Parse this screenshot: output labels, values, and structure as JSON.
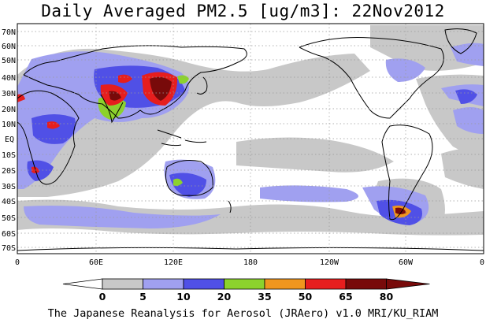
{
  "title": "Daily Averaged PM2.5 [ug/m3]: 22Nov2012",
  "credit": "The Japanese Reanalysis for Aerosol (JRAero) v1.0 MRI/KU_RIAM",
  "lat_labels": [
    "70N",
    "60N",
    "50N",
    "40N",
    "30N",
    "20N",
    "10N",
    "EQ",
    "10S",
    "20S",
    "30S",
    "40S",
    "50S",
    "60S",
    "70S"
  ],
  "lon_labels": [
    "0",
    "60E",
    "120E",
    "180",
    "120W",
    "60W",
    "0"
  ],
  "colorbar": {
    "ticks": [
      "0",
      "5",
      "10",
      "20",
      "35",
      "50",
      "65",
      "80"
    ],
    "colors": [
      "#ffffff",
      "#c8c8c8",
      "#a0a0f0",
      "#5050e6",
      "#8cd22d",
      "#f0961e",
      "#e61e1e",
      "#780a0a"
    ]
  }
}
